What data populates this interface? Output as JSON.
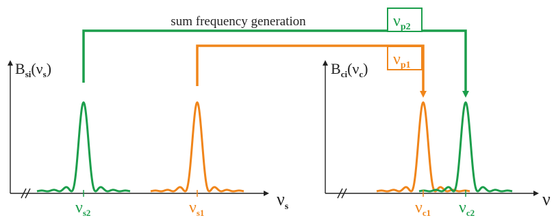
{
  "caption": "sum frequency generation",
  "colors": {
    "green": "#1b9e4b",
    "orange": "#f0851a",
    "axis": "#222222"
  },
  "pump_labels": {
    "green": {
      "base": "ν",
      "sub": "p2"
    },
    "orange": {
      "base": "ν",
      "sub": "p1"
    }
  },
  "left_axis": {
    "ylabel": {
      "base": "B",
      "sub": "si",
      "arg": "(ν",
      "arg_sub": "s",
      "close": ")"
    },
    "xlabel": {
      "base": "ν",
      "sub": "s"
    },
    "ticks": [
      {
        "base": "ν",
        "sub": "s2",
        "color": "green"
      },
      {
        "base": "ν",
        "sub": "s1",
        "color": "orange"
      }
    ]
  },
  "right_axis": {
    "ylabel": {
      "base": "B",
      "sub": "ci",
      "arg": "(ν",
      "arg_sub": "c",
      "close": ")"
    },
    "xlabel": {
      "base": "ν"
    },
    "ticks": [
      {
        "base": "ν",
        "sub": "c1",
        "color": "orange"
      },
      {
        "base": "ν",
        "sub": "c2",
        "color": "green"
      }
    ]
  }
}
